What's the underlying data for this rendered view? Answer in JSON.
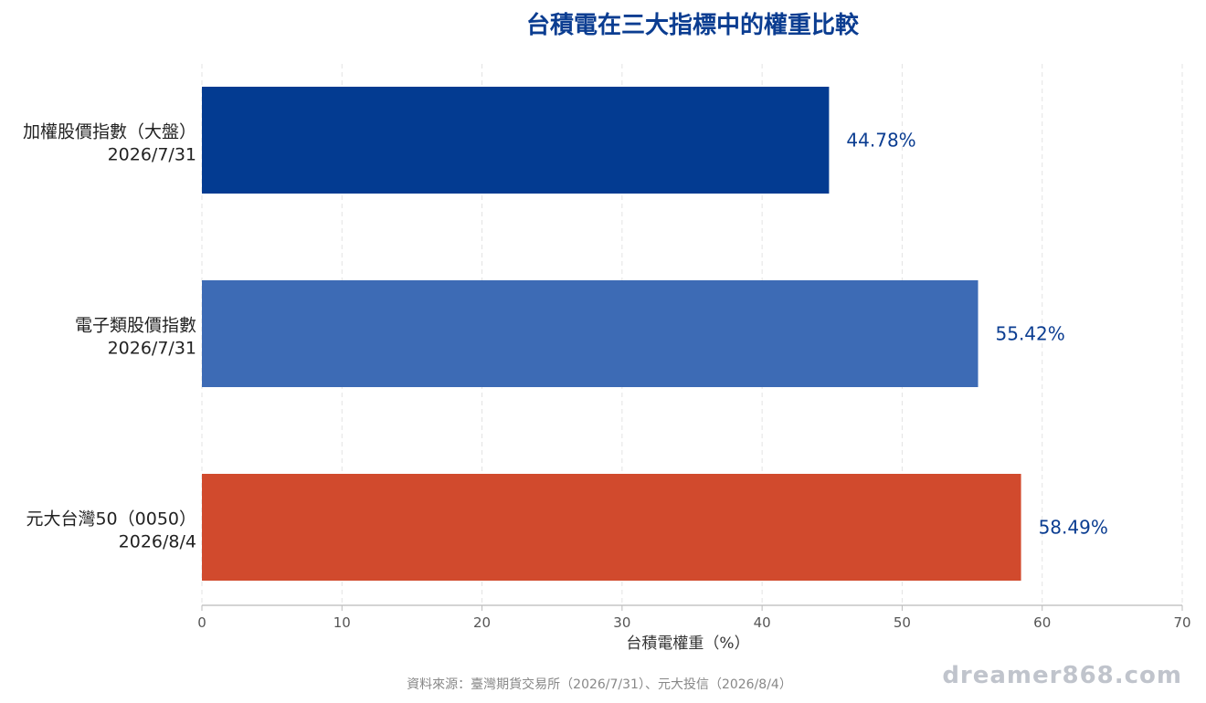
{
  "chart_data": {
    "type": "bar",
    "orientation": "horizontal",
    "title": "台積電在三大指標中的權重比較",
    "xlabel": "台積電權重（%）",
    "ylabel": "",
    "xlim": [
      0,
      70
    ],
    "xticks": [
      0,
      10,
      20,
      30,
      40,
      50,
      60,
      70
    ],
    "grid": true,
    "categories": [
      [
        "加權股價指數（大盤）",
        "2026/7/31"
      ],
      [
        "電子類股價指數",
        "2026/7/31"
      ],
      [
        "元大台灣50（0050）",
        "2026/8/4"
      ]
    ],
    "values": [
      44.78,
      55.42,
      58.49
    ],
    "value_labels": [
      "44.78%",
      "55.42%",
      "58.49%"
    ],
    "bar_colors": [
      "#033b91",
      "#3d6bb5",
      "#d14a2d"
    ]
  },
  "colors": {
    "title": "#0b3d91",
    "value_label": "#0b3d91",
    "grid": "#e3e3e3",
    "axis": "#bbbbbb"
  },
  "source_note": "資料來源：臺灣期貨交易所（2026/7/31）、元大投信（2026/8/4）",
  "watermark": "dreamer868.com"
}
